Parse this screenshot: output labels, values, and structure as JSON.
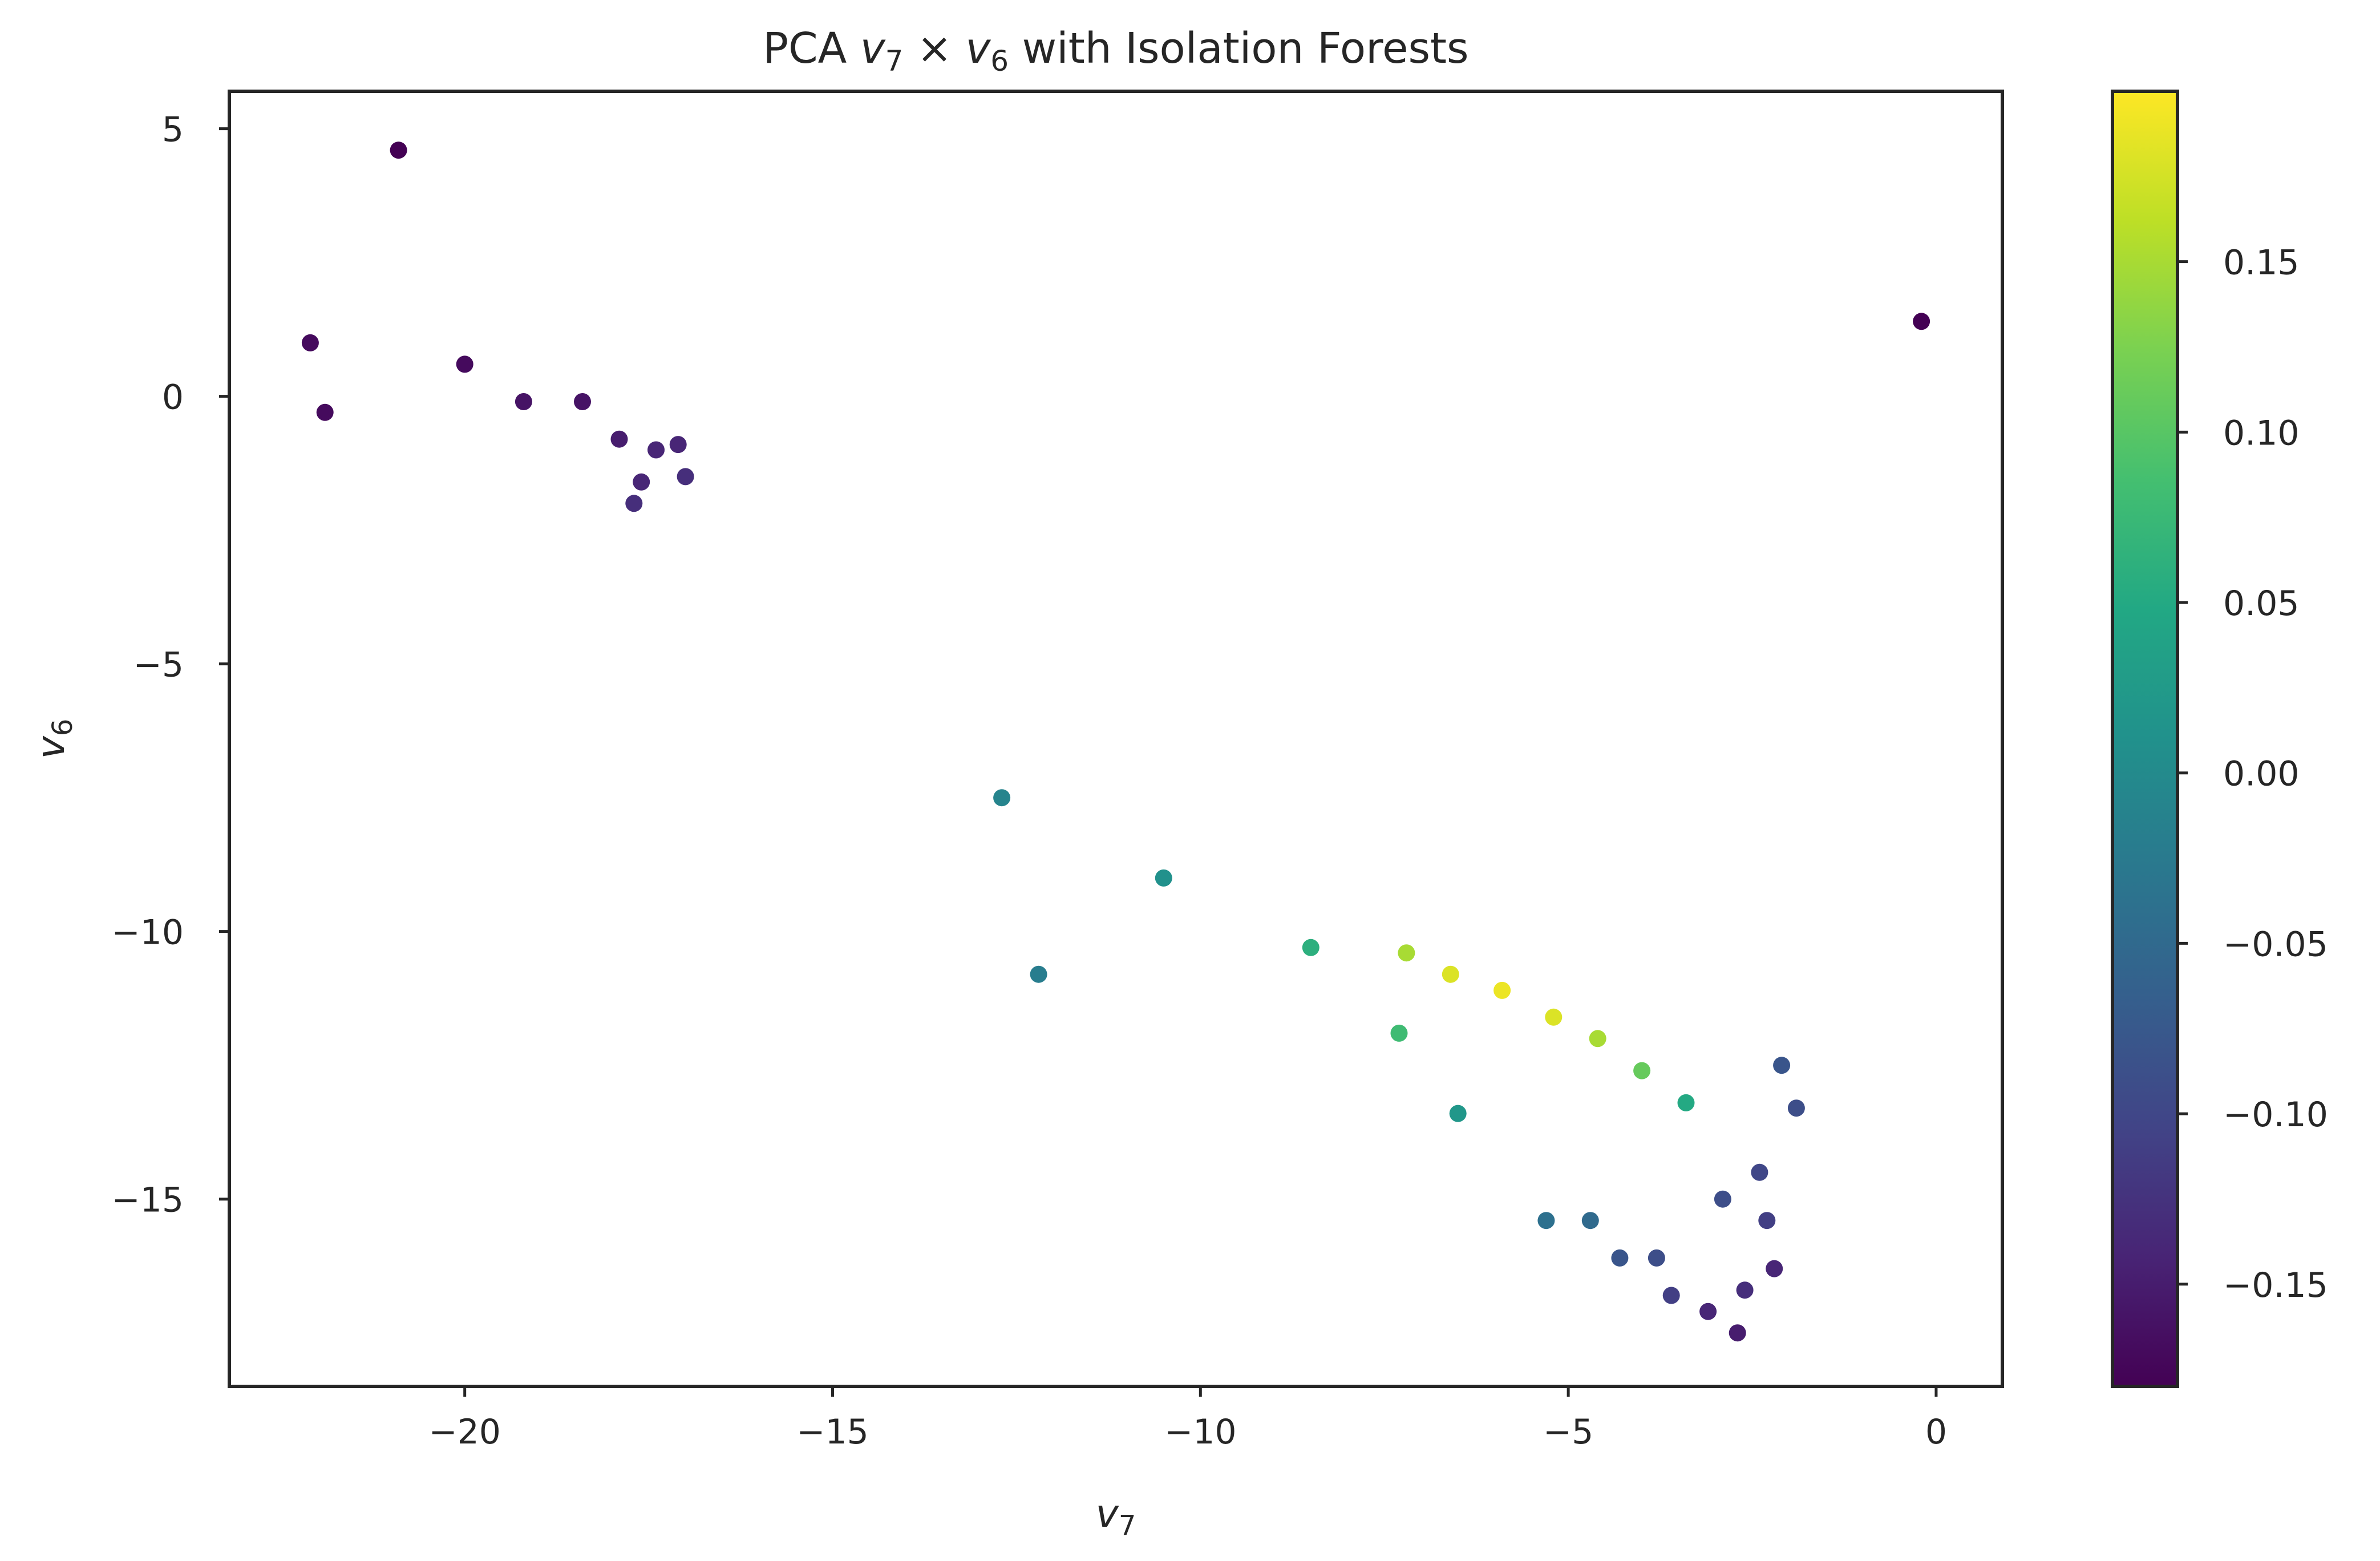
{
  "chart_data": {
    "type": "scatter",
    "title_parts": {
      "prefix": "PCA ",
      "x_var": "v",
      "x_sub": "7",
      "times": " × ",
      "y_var": "v",
      "y_sub": "6",
      "suffix": " with Isolation Forests"
    },
    "xlabel": {
      "var": "v",
      "sub": "7"
    },
    "ylabel": {
      "var": "v",
      "sub": "6"
    },
    "xlim": [
      -23.2,
      0.9
    ],
    "ylim": [
      -18.5,
      5.7
    ],
    "xticks": [
      -20,
      -15,
      -10,
      -5,
      0
    ],
    "xtick_labels": [
      "−20",
      "−15",
      "−10",
      "−5",
      "0"
    ],
    "yticks": [
      5,
      0,
      -5,
      -10,
      -15
    ],
    "ytick_labels": [
      "5",
      "0",
      "−5",
      "−10",
      "−15"
    ],
    "grid": false,
    "colormap": "viridis",
    "colorbar": {
      "range": [
        -0.18,
        0.2
      ],
      "ticks": [
        0.15,
        0.1,
        0.05,
        0.0,
        -0.05,
        -0.1,
        -0.15
      ],
      "tick_labels": [
        "0.15",
        "0.10",
        "0.05",
        "0.00",
        "−0.05",
        "−0.10",
        "−0.15"
      ]
    },
    "points": [
      {
        "x": -20.9,
        "y": 4.6,
        "score": -0.18
      },
      {
        "x": -22.1,
        "y": 1.0,
        "score": -0.17
      },
      {
        "x": -21.9,
        "y": -0.3,
        "score": -0.17
      },
      {
        "x": -20.0,
        "y": 0.6,
        "score": -0.17
      },
      {
        "x": -19.2,
        "y": -0.1,
        "score": -0.16
      },
      {
        "x": -18.4,
        "y": -0.1,
        "score": -0.16
      },
      {
        "x": -0.2,
        "y": 1.4,
        "score": -0.18
      },
      {
        "x": -12.2,
        "y": -10.8,
        "score": -0.02
      },
      {
        "x": -17.9,
        "y": -0.8,
        "score": -0.15
      },
      {
        "x": -17.6,
        "y": -1.6,
        "score": -0.14
      },
      {
        "x": -17.4,
        "y": -1.0,
        "score": -0.14
      },
      {
        "x": -17.1,
        "y": -0.9,
        "score": -0.14
      },
      {
        "x": -17.7,
        "y": -2.0,
        "score": -0.13
      },
      {
        "x": -17.0,
        "y": -1.5,
        "score": -0.13
      },
      {
        "x": -6.5,
        "y": -13.4,
        "score": 0.02
      },
      {
        "x": -7.3,
        "y": -11.9,
        "score": 0.08
      },
      {
        "x": -8.5,
        "y": -10.3,
        "score": 0.06
      },
      {
        "x": -10.5,
        "y": -9.0,
        "score": 0.01
      },
      {
        "x": -12.7,
        "y": -7.5,
        "score": -0.01
      },
      {
        "x": -5.3,
        "y": -15.4,
        "score": -0.04
      },
      {
        "x": -4.7,
        "y": -15.4,
        "score": -0.05
      },
      {
        "x": -4.3,
        "y": -16.1,
        "score": -0.08
      },
      {
        "x": -3.8,
        "y": -16.1,
        "score": -0.09
      },
      {
        "x": -3.6,
        "y": -16.8,
        "score": -0.11
      },
      {
        "x": -3.1,
        "y": -17.1,
        "score": -0.14
      },
      {
        "x": -2.7,
        "y": -17.5,
        "score": -0.15
      },
      {
        "x": -2.6,
        "y": -16.7,
        "score": -0.13
      },
      {
        "x": -2.2,
        "y": -16.3,
        "score": -0.14
      },
      {
        "x": -2.3,
        "y": -15.4,
        "score": -0.11
      },
      {
        "x": -2.4,
        "y": -14.5,
        "score": -0.1
      },
      {
        "x": -2.1,
        "y": -12.5,
        "score": -0.08
      },
      {
        "x": -1.9,
        "y": -13.3,
        "score": -0.09
      },
      {
        "x": -2.9,
        "y": -15.0,
        "score": -0.09
      },
      {
        "x": -7.2,
        "y": -10.4,
        "score": 0.15
      },
      {
        "x": -6.6,
        "y": -10.8,
        "score": 0.18
      },
      {
        "x": -5.9,
        "y": -11.1,
        "score": 0.19
      },
      {
        "x": -5.2,
        "y": -11.6,
        "score": 0.18
      },
      {
        "x": -4.6,
        "y": -12.0,
        "score": 0.15
      },
      {
        "x": -4.0,
        "y": -12.6,
        "score": 0.11
      },
      {
        "x": -3.4,
        "y": -13.2,
        "score": 0.05
      }
    ]
  }
}
